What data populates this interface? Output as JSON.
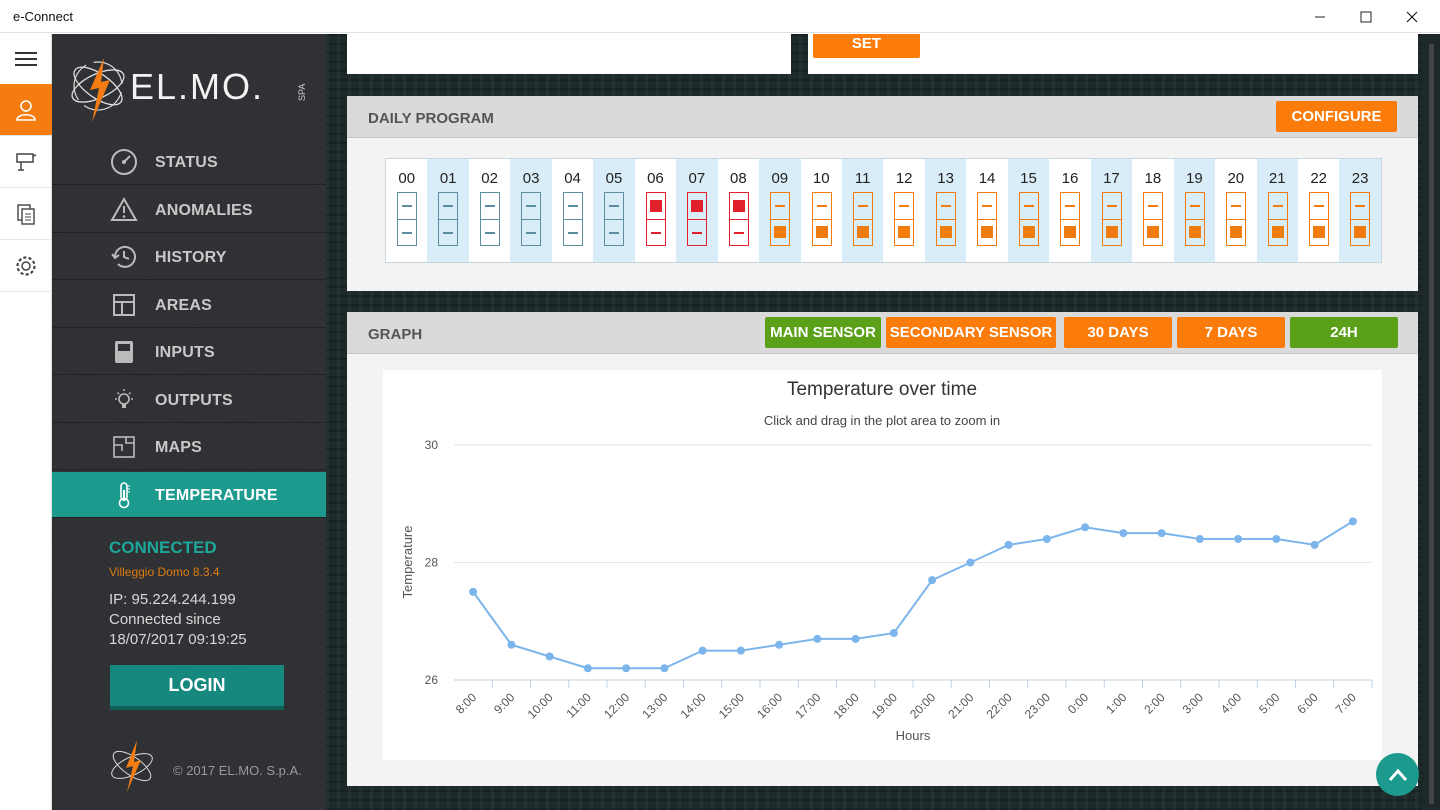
{
  "window": {
    "title": "e-Connect"
  },
  "brand": {
    "logo_text": "EL.MO.",
    "logo_sub": "SPA"
  },
  "nav": {
    "items": [
      {
        "label": "STATUS",
        "icon": "gauge-icon"
      },
      {
        "label": "ANOMALIES",
        "icon": "warning-icon"
      },
      {
        "label": "HISTORY",
        "icon": "history-icon"
      },
      {
        "label": "AREAS",
        "icon": "areas-icon"
      },
      {
        "label": "INPUTS",
        "icon": "inputs-icon"
      },
      {
        "label": "OUTPUTS",
        "icon": "bulb-icon"
      },
      {
        "label": "MAPS",
        "icon": "map-icon"
      },
      {
        "label": "TEMPERATURE",
        "icon": "thermometer-icon"
      }
    ],
    "active": "TEMPERATURE"
  },
  "connection": {
    "status": "CONNECTED",
    "name": "Villeggio Domo 8.3.4",
    "ip": "IP: 95.224.244.199",
    "since_label": "Connected since",
    "since": "18/07/2017 09:19:25",
    "login_label": "LOGIN"
  },
  "footer": {
    "copyright": "© 2017 EL.MO. S.p.A."
  },
  "top": {
    "set_label": "SET"
  },
  "daily_program": {
    "title": "DAILY PROGRAM",
    "configure_label": "CONFIGURE",
    "hours": [
      {
        "h": "00",
        "state": "off"
      },
      {
        "h": "01",
        "state": "off"
      },
      {
        "h": "02",
        "state": "off"
      },
      {
        "h": "03",
        "state": "off"
      },
      {
        "h": "04",
        "state": "off"
      },
      {
        "h": "05",
        "state": "off"
      },
      {
        "h": "06",
        "state": "high"
      },
      {
        "h": "07",
        "state": "high"
      },
      {
        "h": "08",
        "state": "high"
      },
      {
        "h": "09",
        "state": "low"
      },
      {
        "h": "10",
        "state": "low"
      },
      {
        "h": "11",
        "state": "low"
      },
      {
        "h": "12",
        "state": "low"
      },
      {
        "h": "13",
        "state": "low"
      },
      {
        "h": "14",
        "state": "low"
      },
      {
        "h": "15",
        "state": "low"
      },
      {
        "h": "16",
        "state": "low"
      },
      {
        "h": "17",
        "state": "low"
      },
      {
        "h": "18",
        "state": "low"
      },
      {
        "h": "19",
        "state": "low"
      },
      {
        "h": "20",
        "state": "low"
      },
      {
        "h": "21",
        "state": "low"
      },
      {
        "h": "22",
        "state": "low"
      },
      {
        "h": "23",
        "state": "low"
      }
    ]
  },
  "graph": {
    "title": "GRAPH",
    "buttons": [
      {
        "label": "MAIN SENSOR",
        "color": "#5aa019"
      },
      {
        "label": "SECONDARY SENSOR",
        "color": "#fb7c0a"
      },
      {
        "label": "30 DAYS",
        "color": "#fb7c0a"
      },
      {
        "label": "7 DAYS",
        "color": "#fb7c0a"
      },
      {
        "label": "24H",
        "color": "#5aa019"
      }
    ]
  },
  "chart_data": {
    "type": "line",
    "title": "Temperature over time",
    "subtitle": "Click and drag in the plot area to zoom in",
    "xlabel": "Hours",
    "ylabel": "Temperature",
    "ylim": [
      26,
      30
    ],
    "yticks": [
      26,
      28,
      30
    ],
    "grid": true,
    "line_color": "#7cb5ec",
    "categories": [
      "8:00",
      "9:00",
      "10:00",
      "11:00",
      "12:00",
      "13:00",
      "14:00",
      "15:00",
      "16:00",
      "17:00",
      "18:00",
      "19:00",
      "20:00",
      "21:00",
      "22:00",
      "23:00",
      "0:00",
      "1:00",
      "2:00",
      "3:00",
      "4:00",
      "5:00",
      "6:00",
      "7:00"
    ],
    "series": [
      {
        "values": [
          27.5,
          26.6,
          26.4,
          26.2,
          26.2,
          26.2,
          26.5,
          26.5,
          26.6,
          26.7,
          26.7,
          26.8,
          27.7,
          28.0,
          28.3,
          28.4,
          28.6,
          28.5,
          28.5,
          28.4,
          28.4,
          28.4,
          28.3,
          28.7
        ]
      }
    ]
  }
}
